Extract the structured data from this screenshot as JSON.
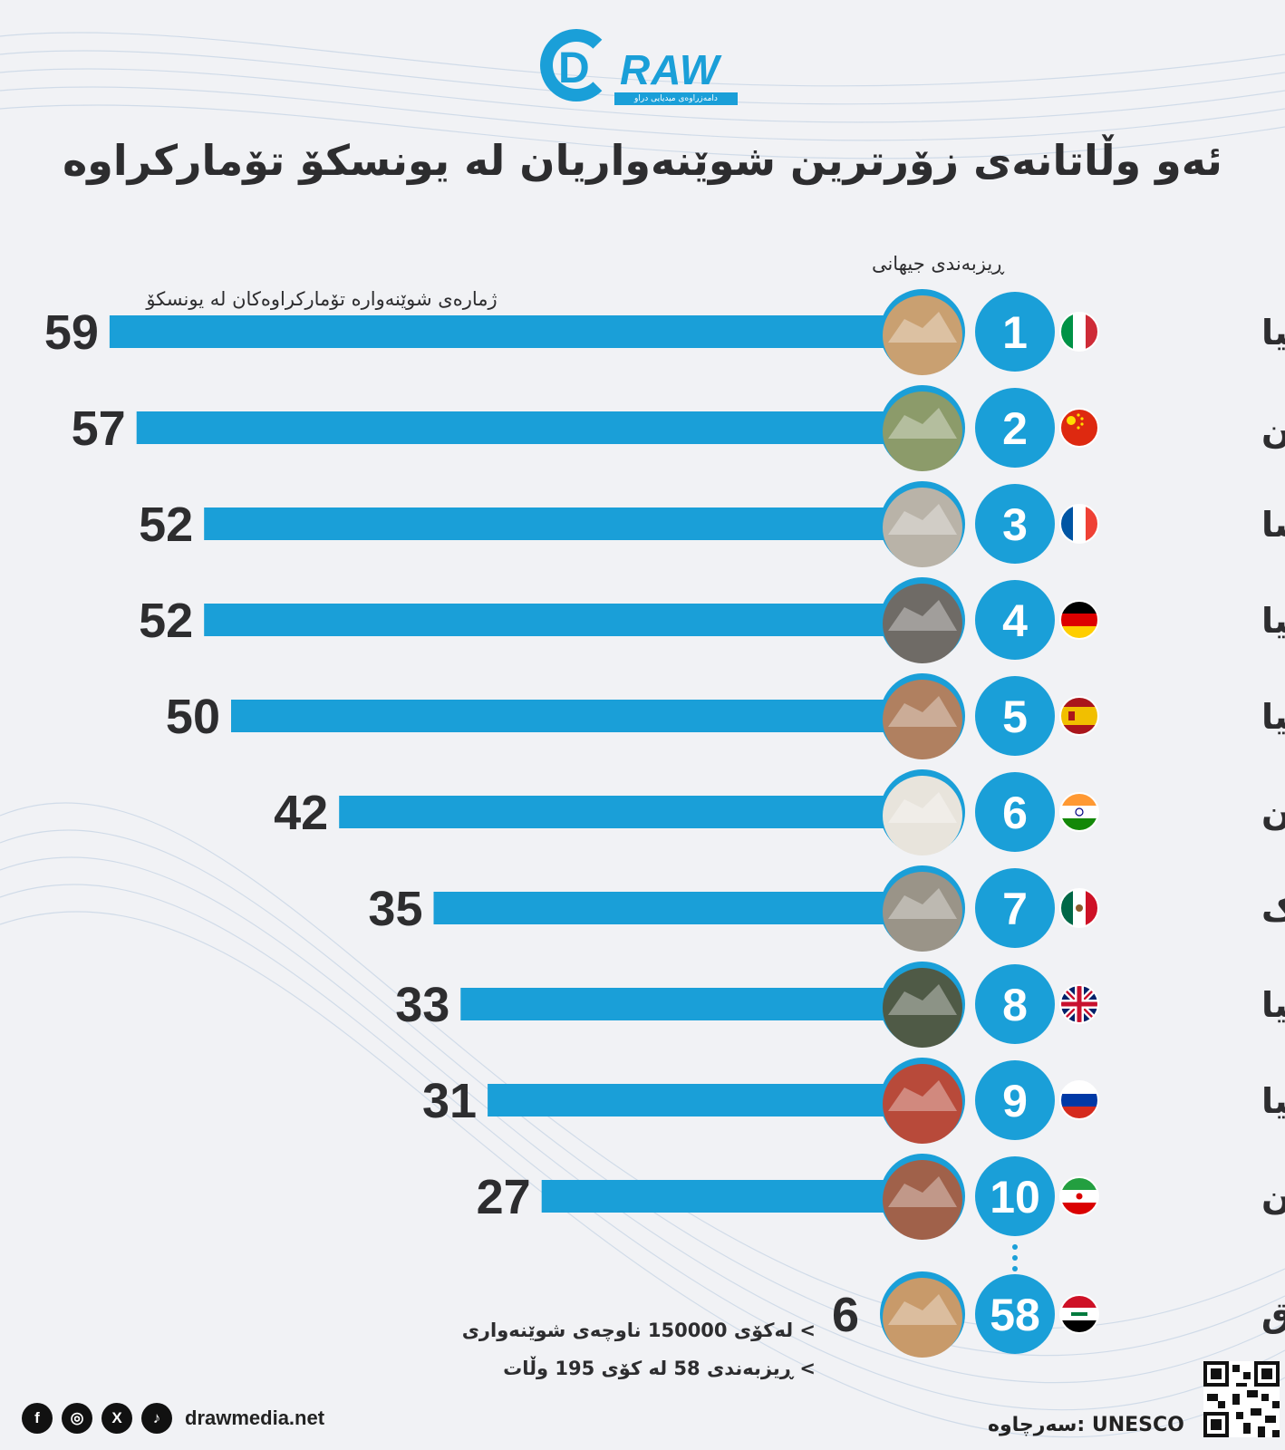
{
  "brand": {
    "logo_text": "RAW",
    "logo_letter": "D",
    "logo_subtitle": "دامەزراوەی میدیایی دراو"
  },
  "title": "ئەو وڵاتانەی زۆرترین شوێنەواریان لە یونسکۆ تۆمارکراوە",
  "rank_label": "ڕیزبەندی جیهانی",
  "count_label": "ژمارەی شوێنەوارە تۆمارکراوەکان لە یونسکۆ",
  "colors": {
    "bar": "#1a9fd8",
    "accent": "#1a9fd8",
    "text": "#2d2d2f"
  },
  "chart_data": {
    "type": "bar",
    "orientation": "horizontal",
    "title": "ئەو وڵاتانەی زۆرترین شوێنەواریان لە یونسکۆ تۆمارکراوە",
    "xlabel": "ژمارەی شوێنەوارە تۆمارکراوەکان لە یونسکۆ",
    "ylabel": "ڕیزبەندی جیهانی",
    "xlim": [
      0,
      59
    ],
    "categories": [
      "ئیتاڵیا",
      "چین",
      "فەرەنسا",
      "ئەڵمانیا",
      "ئیسپانیا",
      "هیندستان",
      "مەکسیک",
      "بەریتانیا",
      "ڕووسیا",
      "ئێران",
      "عێراق"
    ],
    "ranks": [
      1,
      2,
      3,
      4,
      5,
      6,
      7,
      8,
      9,
      10,
      58
    ],
    "values": [
      59,
      57,
      52,
      52,
      50,
      42,
      35,
      33,
      31,
      27,
      6
    ],
    "flags": [
      "flag-italy",
      "flag-china",
      "flag-france",
      "flag-germany",
      "flag-spain",
      "flag-india",
      "flag-mexico",
      "flag-uk",
      "flag-russia",
      "flag-iran",
      "flag-iraq"
    ],
    "landmarks": [
      "colosseum-icon",
      "great-wall-icon",
      "louvre-icon",
      "cologne-cathedral-icon",
      "cordoba-bridge-icon",
      "taj-mahal-icon",
      "chichen-itza-icon",
      "stonehenge-icon",
      "st-basil-icon",
      "bam-citadel-icon",
      "samarra-minaret-icon"
    ]
  },
  "notes": {
    "line1": "> لەکۆی 150000 ناوچەی شوێنەواری",
    "line2": "> ڕیزبەندی 58 لە کۆی 195 وڵات"
  },
  "footer": {
    "website": "drawmedia.net",
    "source": "سەرچاوە: UNESCO",
    "social": [
      "facebook-icon",
      "instagram-icon",
      "x-icon",
      "tiktok-icon"
    ]
  }
}
